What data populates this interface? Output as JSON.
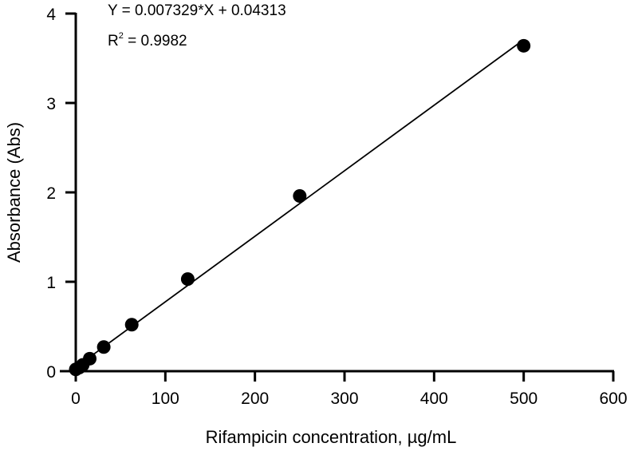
{
  "chart_data": {
    "type": "scatter",
    "title": "",
    "xlabel": "Rifampicin concentration, µg/mL",
    "ylabel": "Absorbance (Abs)",
    "xlim": [
      0,
      600
    ],
    "ylim": [
      0,
      4
    ],
    "xticks": [
      0,
      100,
      200,
      300,
      400,
      500,
      600
    ],
    "yticks": [
      0,
      1,
      2,
      3,
      4
    ],
    "grid": false,
    "colors": {
      "points": "#000000",
      "line": "#000000"
    },
    "points": [
      {
        "x": 0,
        "y": 0.02
      },
      {
        "x": 3.9,
        "y": 0.04
      },
      {
        "x": 7.8,
        "y": 0.07
      },
      {
        "x": 15.6,
        "y": 0.14
      },
      {
        "x": 31.25,
        "y": 0.27
      },
      {
        "x": 62.5,
        "y": 0.52
      },
      {
        "x": 125,
        "y": 1.03
      },
      {
        "x": 250,
        "y": 1.96
      },
      {
        "x": 500,
        "y": 3.64
      }
    ],
    "fit": {
      "slope": 0.007329,
      "intercept": 0.04313,
      "x_range": [
        0,
        500
      ]
    },
    "annotations": {
      "equation": "Y = 0.007329*X + 0.04313",
      "r2_prefix": "R",
      "r2_sup": "2",
      "r2_value": " = 0.9982"
    }
  }
}
